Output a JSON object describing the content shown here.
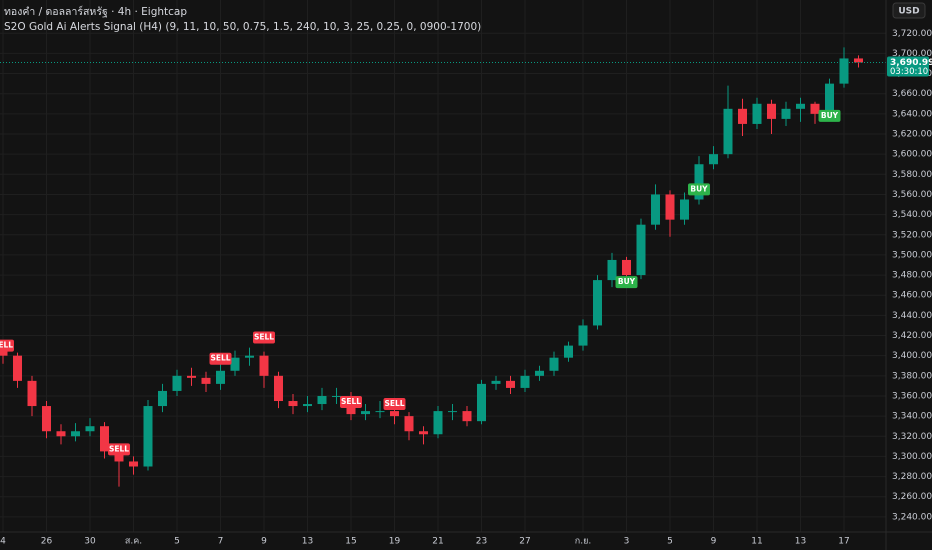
{
  "chart_data": {
    "type": "candlestick",
    "title": "ทองคำ / ดอลลาร์สหรัฐ · 4h · Eightcap",
    "subtitle": "S2O Gold Ai Alerts Signal (H4) (9, 11, 10, 50, 0.75, 1.5, 240, 10, 3, 25, 0.25, 0, 0900-1700)",
    "currency": "USD",
    "categories": [
      "4",
      null,
      null,
      "26",
      null,
      null,
      "30",
      null,
      null,
      "ส.ค.",
      null,
      null,
      "5",
      null,
      null,
      "7",
      null,
      null,
      "9",
      null,
      null,
      "13",
      null,
      null,
      "15",
      null,
      null,
      "19",
      null,
      null,
      "21",
      null,
      null,
      "23",
      null,
      null,
      "27",
      null,
      null,
      null,
      "ก.ย.",
      null,
      null,
      "3",
      null,
      null,
      "5",
      null,
      null,
      "9",
      null,
      null,
      "11",
      null,
      null,
      "13",
      null,
      null,
      "17",
      null
    ],
    "open": [
      3405,
      3400,
      3375,
      3350,
      3325,
      3320,
      3325,
      3330,
      3305,
      3295,
      3290,
      3350,
      3365,
      3380,
      3378,
      3372,
      3385,
      3398,
      3400,
      3380,
      3355,
      3350,
      3352,
      3360,
      3360,
      3342,
      3345,
      3345,
      3340,
      3325,
      3322,
      3345,
      3345,
      3335,
      3372,
      3375,
      3368,
      3380,
      3385,
      3398,
      3410,
      3430,
      3475,
      3495,
      3480,
      3530,
      3560,
      3535,
      3555,
      3590,
      3600,
      3645,
      3630,
      3650,
      3635,
      3645,
      3650,
      3640,
      3670,
      3695
    ],
    "high": [
      3410,
      3403,
      3380,
      3355,
      3332,
      3333,
      3338,
      3334,
      3310,
      3300,
      3356,
      3372,
      3386,
      3388,
      3384,
      3392,
      3405,
      3408,
      3404,
      3384,
      3362,
      3360,
      3368,
      3368,
      3364,
      3352,
      3355,
      3352,
      3344,
      3330,
      3350,
      3352,
      3350,
      3376,
      3380,
      3380,
      3386,
      3390,
      3404,
      3414,
      3436,
      3480,
      3502,
      3498,
      3536,
      3570,
      3564,
      3562,
      3598,
      3608,
      3668,
      3655,
      3656,
      3654,
      3652,
      3656,
      3652,
      3675,
      3706,
      3698
    ],
    "low": [
      3392,
      3368,
      3340,
      3318,
      3312,
      3315,
      3320,
      3298,
      3270,
      3282,
      3286,
      3344,
      3360,
      3370,
      3364,
      3366,
      3380,
      3390,
      3368,
      3348,
      3342,
      3344,
      3346,
      3352,
      3336,
      3336,
      3338,
      3332,
      3316,
      3312,
      3318,
      3336,
      3330,
      3332,
      3366,
      3362,
      3364,
      3375,
      3380,
      3394,
      3405,
      3426,
      3468,
      3468,
      3476,
      3525,
      3518,
      3530,
      3550,
      3585,
      3596,
      3618,
      3625,
      3620,
      3628,
      3632,
      3630,
      3636,
      3666,
      3686
    ],
    "close": [
      3400,
      3375,
      3350,
      3325,
      3320,
      3325,
      3330,
      3305,
      3295,
      3290,
      3350,
      3365,
      3380,
      3378,
      3372,
      3385,
      3398,
      3400,
      3380,
      3355,
      3350,
      3352,
      3360,
      3360,
      3342,
      3345,
      3345,
      3340,
      3325,
      3322,
      3345,
      3345,
      3335,
      3372,
      3375,
      3368,
      3380,
      3385,
      3398,
      3410,
      3430,
      3475,
      3495,
      3480,
      3530,
      3560,
      3535,
      3555,
      3590,
      3600,
      3645,
      3630,
      3650,
      3635,
      3645,
      3650,
      3640,
      3670,
      3695,
      3691
    ],
    "up_color": "#089981",
    "down_color": "#f23645",
    "signals": [
      {
        "label": "SELL",
        "index": 0,
        "price": 3410
      },
      {
        "label": "SELL",
        "index": 8,
        "price": 3307
      },
      {
        "label": "SELL",
        "index": 15,
        "price": 3397
      },
      {
        "label": "SELL",
        "index": 18,
        "price": 3418
      },
      {
        "label": "SELL",
        "index": 24,
        "price": 3354
      },
      {
        "label": "SELL",
        "index": 27,
        "price": 3352
      },
      {
        "label": "BUY",
        "index": 43,
        "price": 3473
      },
      {
        "label": "BUY",
        "index": 48,
        "price": 3565
      },
      {
        "label": "BUY",
        "index": 57,
        "price": 3638
      }
    ],
    "last_price": {
      "value": 3690.99,
      "label": "3,690.99"
    },
    "countdown": "03:30:10",
    "ylim": [
      3225,
      3753
    ],
    "yticks": [
      {
        "value": 3240,
        "label": "3,240.00"
      },
      {
        "value": 3260,
        "label": "3,260.00"
      },
      {
        "value": 3280,
        "label": "3,280.00"
      },
      {
        "value": 3300,
        "label": "3,300.00"
      },
      {
        "value": 3320,
        "label": "3,320.00"
      },
      {
        "value": 3340,
        "label": "3,340.00"
      },
      {
        "value": 3360,
        "label": "3,360.00"
      },
      {
        "value": 3380,
        "label": "3,380.00"
      },
      {
        "value": 3400,
        "label": "3,400.00"
      },
      {
        "value": 3420,
        "label": "3,420.00"
      },
      {
        "value": 3440,
        "label": "3,440.00"
      },
      {
        "value": 3460,
        "label": "3,460.00"
      },
      {
        "value": 3480,
        "label": "3,480.00"
      },
      {
        "value": 3500,
        "label": "3,500.00"
      },
      {
        "value": 3520,
        "label": "3,520.00"
      },
      {
        "value": 3540,
        "label": "3,540.00"
      },
      {
        "value": 3560,
        "label": "3,560.00"
      },
      {
        "value": 3580,
        "label": "3,580.00"
      },
      {
        "value": 3600,
        "label": "3,600.00"
      },
      {
        "value": 3620,
        "label": "3,620.00"
      },
      {
        "value": 3640,
        "label": "3,640.00"
      },
      {
        "value": 3660,
        "label": "3,660.00"
      },
      {
        "value": 3680,
        "label": "3,680.00"
      },
      {
        "value": 3700,
        "label": "3,700.00"
      },
      {
        "value": 3720,
        "label": "3,720.00"
      }
    ],
    "grid": true
  }
}
